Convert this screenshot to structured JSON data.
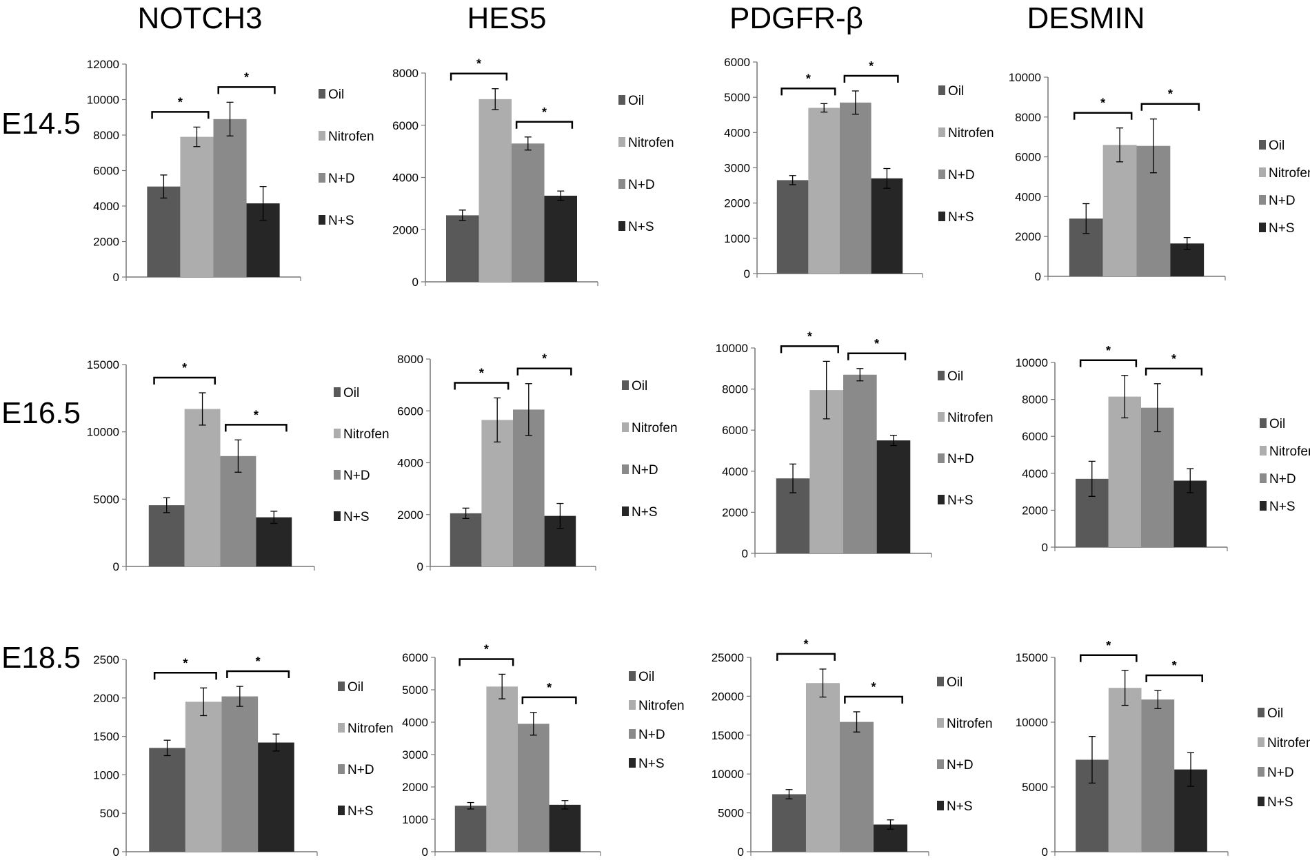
{
  "column_titles": [
    "NOTCH3",
    "HES5",
    "PDGFR-β",
    "DESMIN"
  ],
  "row_labels": [
    "E14.5",
    "E16.5",
    "E18.5"
  ],
  "legend": [
    "Oil",
    "Nitrofen",
    "N+D",
    "N+S"
  ],
  "significance_marker": "*",
  "colors": {
    "Oil": "#595959",
    "Nitrofen": "#adadad",
    "N+D": "#8a8a8a",
    "N+S": "#262626"
  },
  "chart_data": [
    {
      "type": "bar",
      "title": "NOTCH3",
      "row": "E14.5",
      "categories": [
        "Oil",
        "Nitrofen",
        "N+D",
        "N+S"
      ],
      "values": [
        5100,
        7900,
        8900,
        4150
      ],
      "errors": [
        650,
        550,
        950,
        950
      ],
      "yticks": [
        0,
        2000,
        4000,
        6000,
        8000,
        10000,
        12000
      ],
      "ylim": [
        0,
        12000
      ],
      "significance": [
        [
          0,
          1
        ],
        [
          2,
          3
        ]
      ]
    },
    {
      "type": "bar",
      "title": "HES5",
      "row": "E14.5",
      "categories": [
        "Oil",
        "Nitrofen",
        "N+D",
        "N+S"
      ],
      "values": [
        2550,
        7000,
        5300,
        3300
      ],
      "errors": [
        200,
        400,
        250,
        180
      ],
      "yticks": [
        0,
        2000,
        4000,
        6000,
        8000
      ],
      "ylim": [
        0,
        8000
      ],
      "significance": [
        [
          0,
          1
        ],
        [
          2,
          3
        ]
      ]
    },
    {
      "type": "bar",
      "title": "PDGFR-β",
      "row": "E14.5",
      "categories": [
        "Oil",
        "Nitrofen",
        "N+D",
        "N+S"
      ],
      "values": [
        2650,
        4700,
        4850,
        2700
      ],
      "errors": [
        130,
        120,
        330,
        280
      ],
      "yticks": [
        0,
        1000,
        2000,
        3000,
        4000,
        5000,
        6000
      ],
      "ylim": [
        0,
        6000
      ],
      "significance": [
        [
          0,
          1
        ],
        [
          2,
          3
        ]
      ]
    },
    {
      "type": "bar",
      "title": "DESMIN",
      "row": "E14.5",
      "categories": [
        "Oil",
        "Nitrofen",
        "N+D",
        "N+S"
      ],
      "values": [
        2900,
        6600,
        6550,
        1650
      ],
      "errors": [
        750,
        850,
        1350,
        300
      ],
      "yticks": [
        0,
        2000,
        4000,
        6000,
        8000,
        10000
      ],
      "ylim": [
        0,
        10000
      ],
      "significance": [
        [
          0,
          1
        ],
        [
          2,
          3
        ]
      ]
    },
    {
      "type": "bar",
      "title": "NOTCH3",
      "row": "E16.5",
      "categories": [
        "Oil",
        "Nitrofen",
        "N+D",
        "N+S"
      ],
      "values": [
        4550,
        11700,
        8200,
        3650
      ],
      "errors": [
        550,
        1200,
        1200,
        450
      ],
      "yticks": [
        0,
        5000,
        10000,
        15000
      ],
      "ylim": [
        0,
        15000
      ],
      "significance": [
        [
          0,
          1
        ],
        [
          2,
          3
        ]
      ]
    },
    {
      "type": "bar",
      "title": "HES5",
      "row": "E16.5",
      "categories": [
        "Oil",
        "Nitrofen",
        "N+D",
        "N+S"
      ],
      "values": [
        2050,
        5650,
        6050,
        1950
      ],
      "errors": [
        200,
        850,
        1000,
        480
      ],
      "yticks": [
        0,
        2000,
        4000,
        6000,
        8000
      ],
      "ylim": [
        0,
        8000
      ],
      "significance": [
        [
          0,
          1
        ],
        [
          2,
          3
        ]
      ]
    },
    {
      "type": "bar",
      "title": "PDGFR-β",
      "row": "E16.5",
      "categories": [
        "Oil",
        "Nitrofen",
        "N+D",
        "N+S"
      ],
      "values": [
        3650,
        7950,
        8700,
        5500
      ],
      "errors": [
        700,
        1400,
        300,
        250
      ],
      "yticks": [
        0,
        2000,
        4000,
        6000,
        8000,
        10000
      ],
      "ylim": [
        0,
        10000
      ],
      "significance": [
        [
          0,
          1
        ],
        [
          2,
          3
        ]
      ]
    },
    {
      "type": "bar",
      "title": "DESMIN",
      "row": "E16.5",
      "categories": [
        "Oil",
        "Nitrofen",
        "N+D",
        "N+S"
      ],
      "values": [
        3700,
        8150,
        7550,
        3600
      ],
      "errors": [
        950,
        1150,
        1300,
        650
      ],
      "yticks": [
        0,
        2000,
        4000,
        6000,
        8000,
        10000
      ],
      "ylim": [
        0,
        10000
      ],
      "significance": [
        [
          0,
          1
        ],
        [
          2,
          3
        ]
      ]
    },
    {
      "type": "bar",
      "title": "NOTCH3",
      "row": "E18.5",
      "categories": [
        "Oil",
        "Nitrofen",
        "N+D",
        "N+S"
      ],
      "values": [
        1350,
        1950,
        2020,
        1420
      ],
      "errors": [
        100,
        180,
        130,
        110
      ],
      "yticks": [
        0,
        500,
        1000,
        1500,
        2000,
        2500
      ],
      "ylim": [
        0,
        2500
      ],
      "significance": [
        [
          0,
          1
        ],
        [
          2,
          3
        ]
      ]
    },
    {
      "type": "bar",
      "title": "HES5",
      "row": "E18.5",
      "categories": [
        "Oil",
        "Nitrofen",
        "N+D",
        "N+S"
      ],
      "values": [
        1420,
        5100,
        3950,
        1450
      ],
      "errors": [
        100,
        380,
        350,
        130
      ],
      "yticks": [
        0,
        1000,
        2000,
        3000,
        4000,
        5000,
        6000
      ],
      "ylim": [
        0,
        6000
      ],
      "significance": [
        [
          0,
          1
        ],
        [
          2,
          3
        ]
      ]
    },
    {
      "type": "bar",
      "title": "PDGFR-β",
      "row": "E18.5",
      "categories": [
        "Oil",
        "Nitrofen",
        "N+D",
        "N+S"
      ],
      "values": [
        7400,
        21700,
        16700,
        3500
      ],
      "errors": [
        600,
        1800,
        1300,
        600
      ],
      "yticks": [
        0,
        5000,
        10000,
        15000,
        20000,
        25000
      ],
      "ylim": [
        0,
        25000
      ],
      "significance": [
        [
          0,
          1
        ],
        [
          2,
          3
        ]
      ]
    },
    {
      "type": "bar",
      "title": "DESMIN",
      "row": "E18.5",
      "categories": [
        "Oil",
        "Nitrofen",
        "N+D",
        "N+S"
      ],
      "values": [
        7100,
        12650,
        11750,
        6350
      ],
      "errors": [
        1800,
        1350,
        700,
        1300
      ],
      "yticks": [
        0,
        5000,
        10000,
        15000
      ],
      "ylim": [
        0,
        15000
      ],
      "significance": [
        [
          0,
          1
        ],
        [
          2,
          3
        ]
      ]
    }
  ]
}
